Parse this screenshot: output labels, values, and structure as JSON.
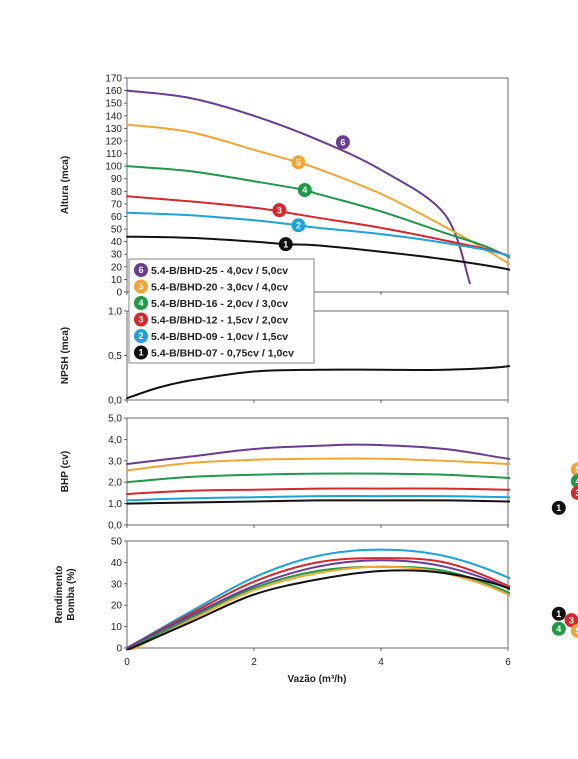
{
  "colors": {
    "1": "#111111",
    "2": "#1aa3dc",
    "3": "#d9262a",
    "4": "#1e9a47",
    "5": "#f4a531",
    "6": "#6a3a97"
  },
  "legend": [
    {
      "id": "6",
      "label": "5.4-B/BHD-25 - 4,0cv / 5,0cv"
    },
    {
      "id": "5",
      "label": "5.4-B/BHD-20 - 3,0cv / 4,0cv"
    },
    {
      "id": "4",
      "label": "5.4-B/BHD-16 - 2,0cv / 3,0cv"
    },
    {
      "id": "3",
      "label": "5.4-B/BHD-12 - 1,5cv / 2,0cv"
    },
    {
      "id": "2",
      "label": "5.4-B/BHD-09 - 1,0cv / 1,5cv"
    },
    {
      "id": "1",
      "label": "5.4-B/BHD-07 - 0,75cv / 1,0cv"
    }
  ],
  "x_axis": {
    "label": "Vazão (m³/h)",
    "ticks": [
      "0",
      "2",
      "4",
      "6"
    ],
    "xlim": [
      0,
      6
    ]
  },
  "chart_data": [
    {
      "type": "line",
      "ylabel": "Altura (mca)",
      "ylim": [
        0,
        170
      ],
      "yticks": [
        "0",
        "10",
        "20",
        "30",
        "40",
        "50",
        "60",
        "70",
        "80",
        "90",
        "100",
        "110",
        "120",
        "130",
        "140",
        "150",
        "160",
        "170"
      ],
      "grid": false,
      "series": [
        {
          "id": "6",
          "x": [
            0,
            1,
            2,
            3,
            4,
            5,
            5.4
          ],
          "y": [
            160,
            154,
            140,
            121,
            97,
            62,
            7
          ],
          "badge": [
            3.4,
            119
          ]
        },
        {
          "id": "5",
          "x": [
            0,
            1,
            2,
            2.7,
            3,
            4,
            5,
            5.6,
            6.6
          ],
          "y": [
            133,
            127,
            113,
            103,
            98,
            78,
            52,
            35,
            5
          ],
          "badge": [
            2.7,
            103
          ]
        },
        {
          "id": "4",
          "x": [
            0,
            1,
            2,
            2.8,
            3,
            4,
            5,
            5.8,
            6.9
          ],
          "y": [
            100,
            96,
            88,
            81,
            78,
            64,
            47,
            33,
            5
          ],
          "badge": [
            2.8,
            81
          ]
        },
        {
          "id": "3",
          "x": [
            0,
            1,
            2,
            2.4,
            3,
            4,
            5,
            6,
            7.0
          ],
          "y": [
            76,
            72,
            67,
            64,
            59,
            51,
            41,
            29,
            5
          ],
          "badge": [
            2.4,
            65
          ]
        },
        {
          "id": "2",
          "x": [
            0,
            1,
            2,
            2.7,
            3,
            4,
            5,
            6,
            7.2
          ],
          "y": [
            63,
            61,
            57,
            53,
            51,
            46,
            39,
            29,
            5
          ],
          "badge": [
            2.7,
            53
          ]
        },
        {
          "id": "1",
          "x": [
            0,
            1,
            2,
            2.5,
            3,
            4,
            5,
            6,
            6.8
          ],
          "y": [
            44,
            43,
            40,
            38,
            37,
            32,
            26,
            18,
            8
          ],
          "badge": [
            2.5,
            38
          ]
        }
      ]
    },
    {
      "type": "line",
      "ylabel": "NPSH (mca)",
      "ylim": [
        0,
        1
      ],
      "yticks": [
        "0,0",
        "0,5",
        "1,0"
      ],
      "grid": false,
      "series": [
        {
          "id": "1",
          "x": [
            0,
            0.5,
            1,
            2,
            3,
            4,
            5,
            6,
            7.1
          ],
          "y": [
            0.02,
            0.14,
            0.22,
            0.32,
            0.34,
            0.34,
            0.34,
            0.38,
            0.52
          ]
        }
      ]
    },
    {
      "type": "line",
      "ylabel": "BHP (cv)",
      "ylim": [
        0,
        5
      ],
      "yticks": [
        "0,0",
        "1,0",
        "2,0",
        "3,0",
        "4,0",
        "5,0"
      ],
      "grid": false,
      "series": [
        {
          "id": "6",
          "x": [
            0,
            1,
            2,
            3,
            3.8,
            5,
            6,
            6.8
          ],
          "y": [
            2.85,
            3.2,
            3.55,
            3.7,
            3.75,
            3.55,
            3.1,
            2.8
          ],
          "badge": [
            7.5,
            2.65
          ]
        },
        {
          "id": "5",
          "x": [
            0,
            1,
            2,
            3,
            4,
            5,
            6,
            6.8
          ],
          "y": [
            2.55,
            2.9,
            3.05,
            3.1,
            3.1,
            3.0,
            2.85,
            2.7
          ],
          "badge": [
            7.1,
            2.6
          ]
        },
        {
          "id": "4",
          "x": [
            0,
            1,
            2,
            3,
            4,
            5,
            6,
            6.8
          ],
          "y": [
            2.0,
            2.25,
            2.35,
            2.4,
            2.4,
            2.35,
            2.2,
            2.05
          ],
          "badge": [
            7.1,
            2.05
          ]
        },
        {
          "id": "3",
          "x": [
            0,
            1,
            2,
            3,
            4,
            5,
            6,
            6.8
          ],
          "y": [
            1.45,
            1.6,
            1.65,
            1.7,
            1.7,
            1.7,
            1.65,
            1.55
          ],
          "badge": [
            7.1,
            1.5
          ]
        },
        {
          "id": "2",
          "x": [
            0,
            1,
            2,
            3,
            4,
            5,
            6,
            6.8
          ],
          "y": [
            1.15,
            1.25,
            1.3,
            1.35,
            1.35,
            1.35,
            1.3,
            1.25
          ],
          "badge": [
            7.3,
            1.1
          ]
        },
        {
          "id": "1",
          "x": [
            0,
            1,
            2,
            3,
            4,
            5,
            6,
            6.8
          ],
          "y": [
            1.0,
            1.05,
            1.1,
            1.15,
            1.15,
            1.15,
            1.1,
            1.05
          ],
          "badge": [
            6.8,
            0.8
          ]
        }
      ]
    },
    {
      "type": "line",
      "ylabel": "Rendimento Bomba (%)",
      "ylim": [
        0,
        50
      ],
      "yticks": [
        "0",
        "10",
        "20",
        "30",
        "40",
        "50"
      ],
      "grid": false,
      "series": [
        {
          "id": "2",
          "x": [
            0,
            1,
            2,
            3,
            4,
            5,
            6,
            6.9
          ],
          "y": [
            0,
            17,
            33,
            43,
            46,
            43,
            33,
            19
          ],
          "badge": [
            7.3,
            19
          ]
        },
        {
          "id": "3",
          "x": [
            0,
            1,
            2,
            3,
            4,
            5,
            6,
            6.9
          ],
          "y": [
            0,
            16,
            31,
            40,
            42,
            40,
            29,
            14
          ],
          "badge": [
            7.0,
            13
          ]
        },
        {
          "id": "6",
          "x": [
            0,
            1,
            2,
            3,
            4,
            5,
            6,
            7.1
          ],
          "y": [
            0,
            15,
            29,
            38,
            41,
            38,
            28,
            10
          ],
          "badge": [
            7.5,
            8
          ]
        },
        {
          "id": "4",
          "x": [
            0,
            1,
            2,
            3,
            4,
            5,
            6,
            6.6
          ],
          "y": [
            -1,
            14,
            28,
            36,
            38,
            36,
            26,
            14
          ],
          "badge": [
            6.8,
            9
          ]
        },
        {
          "id": "5",
          "x": [
            0,
            1,
            2,
            3,
            4,
            5,
            6,
            6.7
          ],
          "y": [
            -2,
            13,
            27,
            35,
            38,
            35,
            25,
            11
          ],
          "badge": [
            7.1,
            8
          ]
        },
        {
          "id": "1",
          "x": [
            0,
            1,
            2,
            3,
            4,
            5,
            6,
            6.6
          ],
          "y": [
            -1,
            12,
            25,
            32,
            36,
            35,
            28,
            17
          ],
          "badge": [
            6.8,
            16
          ]
        }
      ]
    }
  ]
}
